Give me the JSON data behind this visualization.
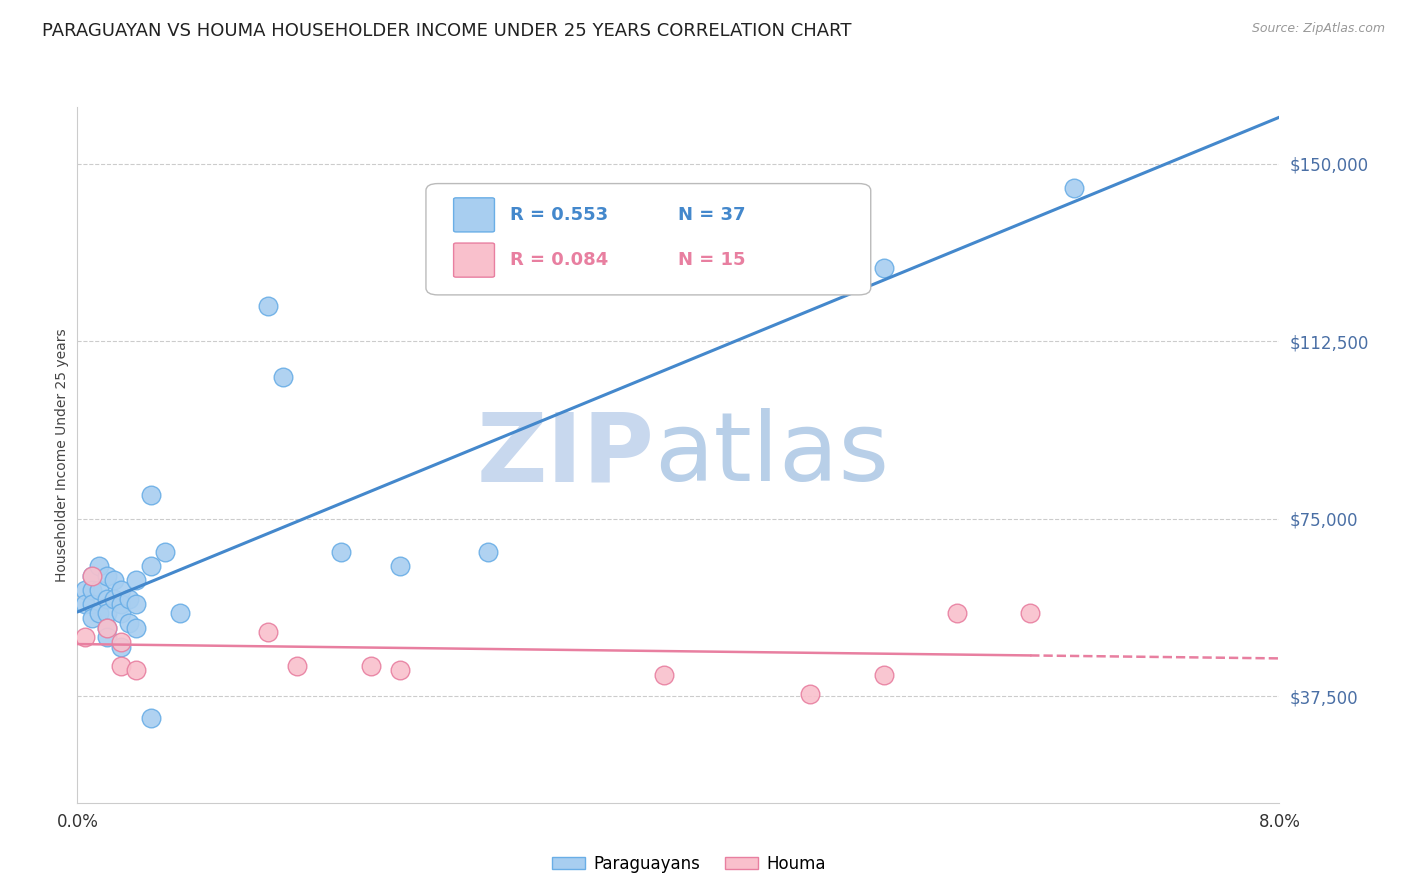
{
  "title": "PARAGUAYAN VS HOUMA HOUSEHOLDER INCOME UNDER 25 YEARS CORRELATION CHART",
  "source": "Source: ZipAtlas.com",
  "ylabel": "Householder Income Under 25 years",
  "ytick_labels": [
    "$150,000",
    "$112,500",
    "$75,000",
    "$37,500"
  ],
  "ytick_values": [
    150000,
    112500,
    75000,
    37500
  ],
  "ymin": 15000,
  "ymax": 162000,
  "xmin": 0.0,
  "xmax": 0.082,
  "legend_r1": "R = 0.553",
  "legend_n1": "N = 37",
  "legend_r2": "R = 0.084",
  "legend_n2": "N = 15",
  "blue_scatter_color": "#a8cef0",
  "blue_scatter_edge": "#6aaee6",
  "pink_scatter_color": "#f9c0cc",
  "pink_scatter_edge": "#e87fa0",
  "blue_line_color": "#4488cc",
  "pink_line_color": "#e87fa0",
  "watermark_zip_color": "#c8d8ee",
  "watermark_atlas_color": "#b8cfe8",
  "paraguayan_x": [
    0.0005,
    0.0005,
    0.001,
    0.001,
    0.001,
    0.001,
    0.0015,
    0.0015,
    0.0015,
    0.002,
    0.002,
    0.002,
    0.002,
    0.002,
    0.0025,
    0.0025,
    0.003,
    0.003,
    0.003,
    0.003,
    0.0035,
    0.0035,
    0.004,
    0.004,
    0.004,
    0.005,
    0.005,
    0.005,
    0.006,
    0.007,
    0.013,
    0.014,
    0.018,
    0.022,
    0.028,
    0.055,
    0.068
  ],
  "paraguayan_y": [
    60000,
    57000,
    63000,
    60000,
    57000,
    54000,
    65000,
    60000,
    55000,
    63000,
    58000,
    55000,
    52000,
    50000,
    62000,
    58000,
    60000,
    57000,
    55000,
    48000,
    58000,
    53000,
    62000,
    57000,
    52000,
    80000,
    65000,
    33000,
    68000,
    55000,
    120000,
    105000,
    68000,
    65000,
    68000,
    128000,
    145000
  ],
  "houma_x": [
    0.0005,
    0.001,
    0.002,
    0.003,
    0.003,
    0.004,
    0.013,
    0.015,
    0.02,
    0.022,
    0.04,
    0.05,
    0.055,
    0.06,
    0.065
  ],
  "houma_y": [
    50000,
    63000,
    52000,
    49000,
    44000,
    43000,
    51000,
    44000,
    44000,
    43000,
    42000,
    38000,
    42000,
    55000,
    55000
  ],
  "background_color": "#ffffff",
  "grid_color": "#cccccc",
  "title_fontsize": 13,
  "axis_label_fontsize": 10,
  "tick_fontsize": 12,
  "watermark_fontsize": 70
}
